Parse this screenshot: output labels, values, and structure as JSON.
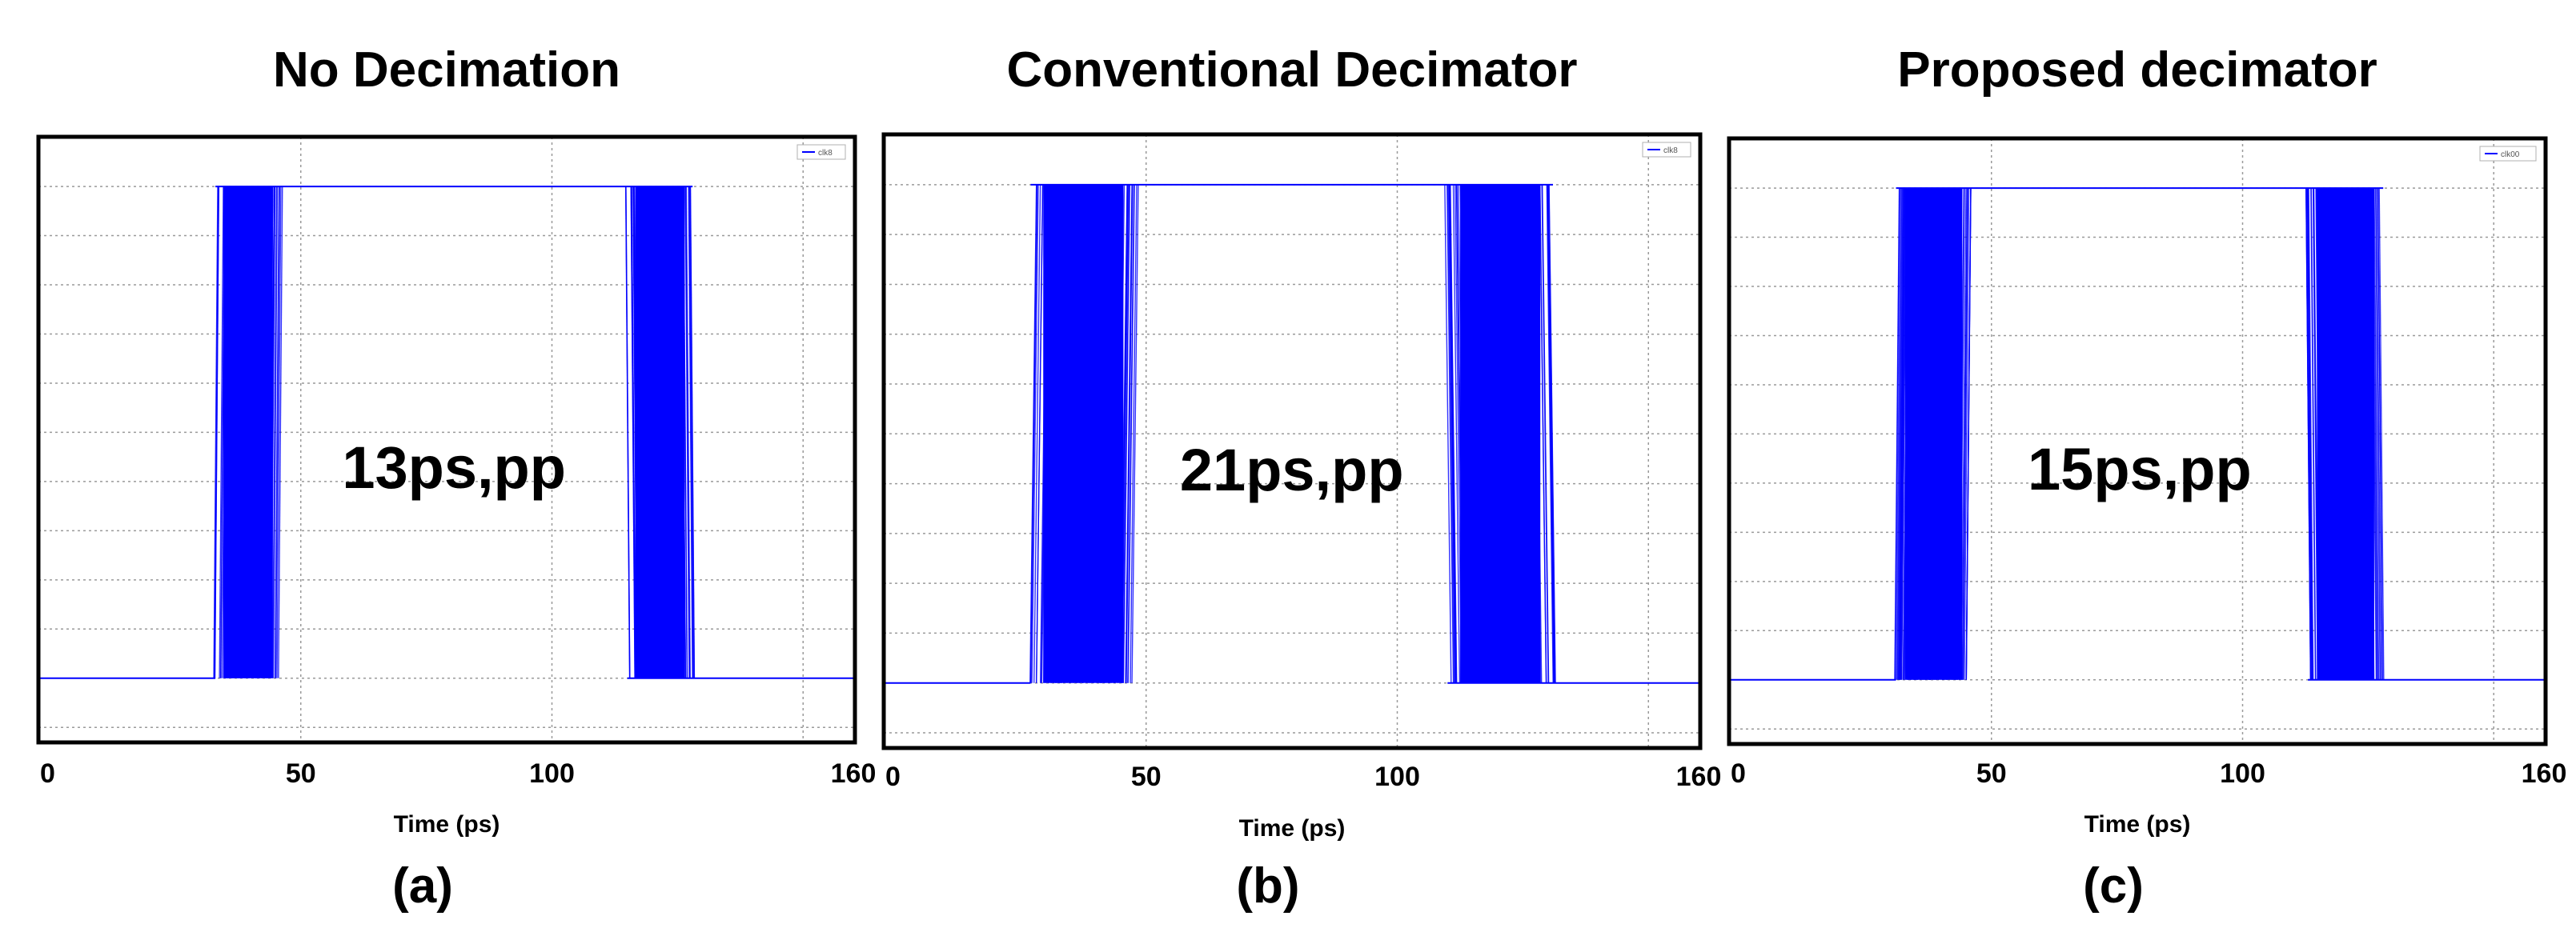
{
  "chart_data": [
    {
      "type": "line",
      "title": "No Decimation",
      "xlabel": "Time (ps)",
      "ylabel": "",
      "xlim": [
        0,
        160
      ],
      "x_ticks": [
        0,
        50,
        100,
        160
      ],
      "grid": true,
      "legend": {
        "placement": "top-right",
        "entries": [
          "clk8"
        ]
      },
      "annotation": "13ps,pp",
      "caption": "(a)",
      "signal_low": 0,
      "signal_high": 1,
      "edges": [
        {
          "kind": "rising",
          "start": 33,
          "end": 46
        },
        {
          "kind": "falling",
          "start": 115,
          "end": 128
        }
      ],
      "series": [
        {
          "name": "clk8",
          "color": "#0000ff"
        }
      ]
    },
    {
      "type": "line",
      "title": "Conventional Decimator",
      "xlabel": "Time (ps)",
      "ylabel": "",
      "xlim": [
        0,
        160
      ],
      "x_ticks": [
        0,
        50,
        100,
        160
      ],
      "grid": true,
      "legend": {
        "placement": "top-right",
        "entries": [
          "clk8"
        ]
      },
      "annotation": "21ps,pp",
      "caption": "(b)",
      "signal_low": 0,
      "signal_high": 1,
      "edges": [
        {
          "kind": "rising",
          "start": 27,
          "end": 48
        },
        {
          "kind": "falling",
          "start": 110,
          "end": 131
        }
      ],
      "series": [
        {
          "name": "clk8",
          "color": "#0000ff"
        }
      ]
    },
    {
      "type": "line",
      "title": "Proposed decimator",
      "xlabel": "Time (ps)",
      "ylabel": "",
      "xlim": [
        0,
        160
      ],
      "x_ticks": [
        0,
        50,
        100,
        160
      ],
      "grid": true,
      "legend": {
        "placement": "top-right",
        "entries": [
          "clk00"
        ]
      },
      "annotation": "15ps,pp",
      "caption": "(c)",
      "signal_low": 0,
      "signal_high": 1,
      "edges": [
        {
          "kind": "rising",
          "start": 31,
          "end": 46
        },
        {
          "kind": "falling",
          "start": 113,
          "end": 128
        }
      ],
      "series": [
        {
          "name": "clk00",
          "color": "#0000ff"
        }
      ]
    }
  ]
}
